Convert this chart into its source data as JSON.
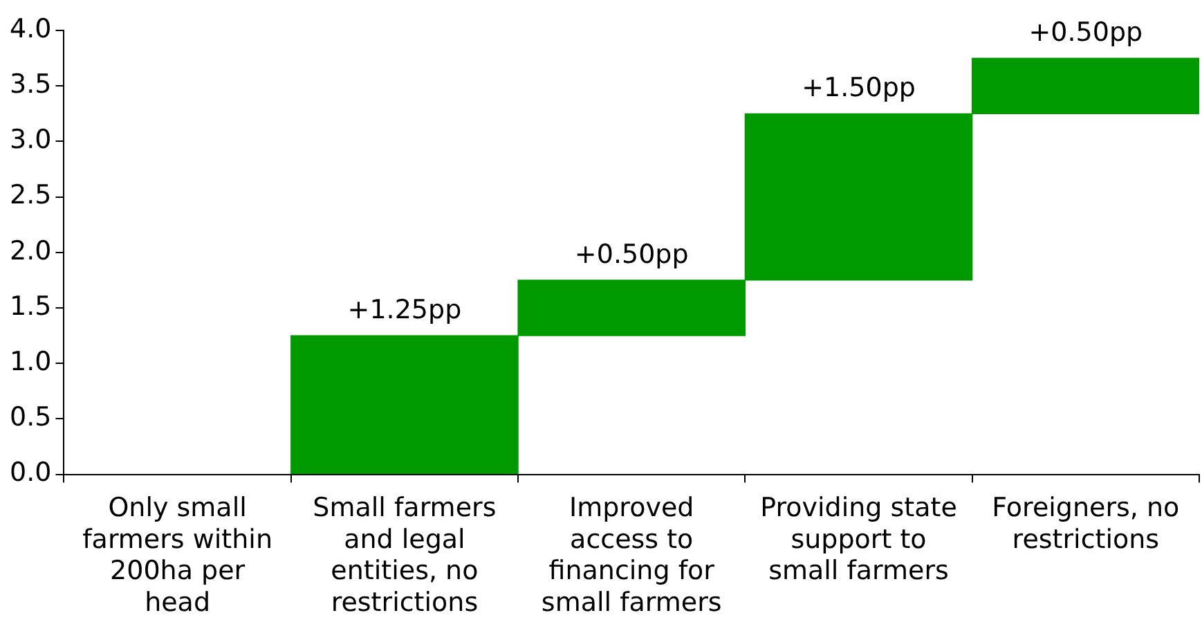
{
  "chart_data": {
    "type": "bar",
    "categories": [
      "Only small farmers within 200ha per head",
      "Small farmers and legal entities, no restrictions",
      "Improved access to financing for small farmers",
      "Providing state support to small farmers",
      "Foreigners, no restrictions"
    ],
    "values": [
      null,
      1.25,
      0.5,
      1.5,
      0.5
    ],
    "base": [
      null,
      0,
      1.25,
      1.75,
      3.25
    ],
    "value_labels": [
      null,
      "+1.25pp",
      "+0.50pp",
      "+1.50pp",
      "+0.50pp"
    ],
    "color": "#009900",
    "ylim": [
      0,
      4
    ],
    "yticks": [
      {
        "value": 0,
        "label": "0.0"
      },
      {
        "value": 0.5,
        "label": "0.5"
      },
      {
        "value": 1,
        "label": "1.0"
      },
      {
        "value": 1.5,
        "label": "1.5"
      },
      {
        "value": 2,
        "label": "2.0"
      },
      {
        "value": 2.5,
        "label": "2.5"
      },
      {
        "value": 3,
        "label": "3.0"
      },
      {
        "value": 3.5,
        "label": "3.5"
      },
      {
        "value": 4,
        "label": "4.0"
      }
    ],
    "grid": false,
    "legend": false
  }
}
